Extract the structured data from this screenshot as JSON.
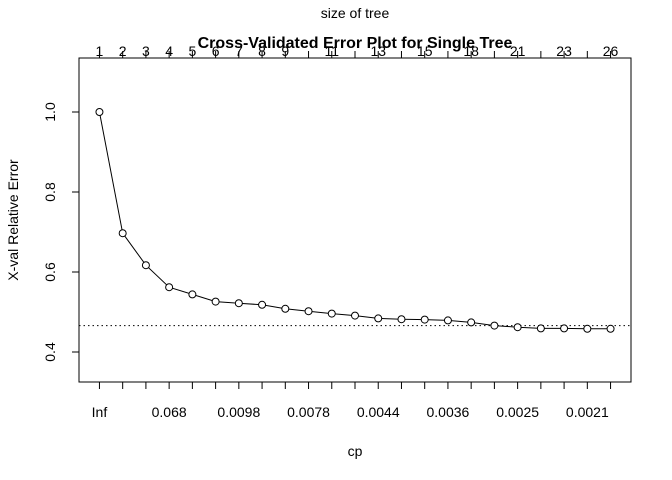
{
  "chart_data": {
    "type": "line",
    "title": "Cross-Validated Error Plot for Single Tree",
    "top_axis_label": "size of tree",
    "xlabel": "cp",
    "ylabel": "X-val Relative Error",
    "ylim": [
      0.325,
      1.135
    ],
    "y_ticks": [
      "0.4",
      "0.6",
      "0.8",
      "1.0"
    ],
    "size_values": [
      1,
      2,
      3,
      4,
      5,
      6,
      7,
      8,
      9,
      10,
      11,
      12,
      13,
      14,
      15,
      16,
      18,
      20,
      21,
      22,
      23,
      24,
      26
    ],
    "size_tick_labels": [
      "1",
      "2",
      "3",
      "4",
      "5",
      "6",
      "7",
      "8",
      "9",
      "11",
      "13",
      "15",
      "18",
      "21",
      "23",
      "26"
    ],
    "cp_tick_labels": [
      "Inf",
      "0.068",
      "0.0098",
      "0.0078",
      "0.0044",
      "0.0036",
      "0.0025",
      "0.0021"
    ],
    "values": [
      1.0,
      0.697,
      0.617,
      0.562,
      0.544,
      0.526,
      0.522,
      0.518,
      0.508,
      0.502,
      0.496,
      0.491,
      0.484,
      0.482,
      0.481,
      0.479,
      0.474,
      0.466,
      0.462,
      0.459,
      0.459,
      0.458,
      0.458
    ],
    "reference_line": {
      "y": 0.466,
      "style": "dotted"
    },
    "grid": false,
    "legend": "none"
  }
}
